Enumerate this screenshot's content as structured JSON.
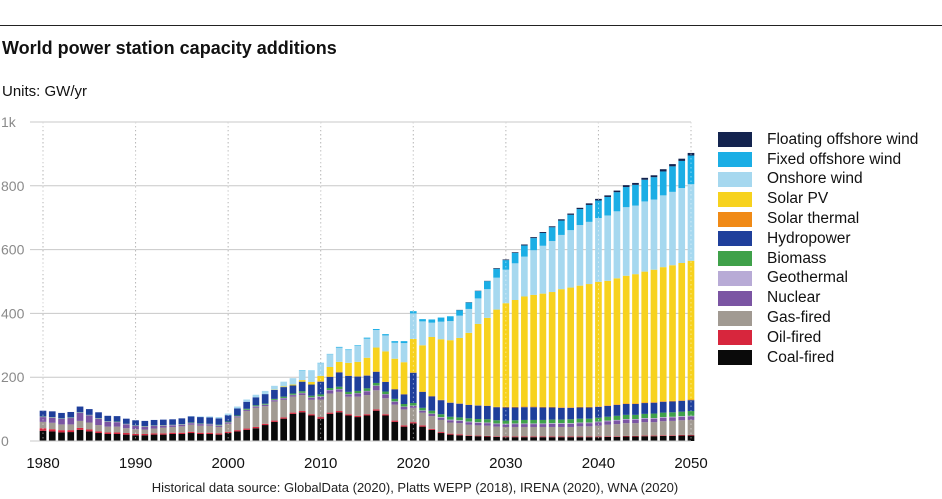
{
  "title": "World power station capacity additions",
  "units": "Units: GW/yr",
  "source": "Historical data source: GlobalData (2020), Platts WEPP (2018), IRENA (2020), WNA (2020)",
  "chart_data": {
    "type": "bar",
    "stacked": true,
    "title": "World power station capacity additions",
    "ylabel": "Units: GW/yr",
    "xlabel": "",
    "xlim": [
      1980,
      2050
    ],
    "ylim": [
      0,
      1000
    ],
    "x_ticks": [
      "1980",
      "1990",
      "2000",
      "2010",
      "2020",
      "2030",
      "2040",
      "2050"
    ],
    "y_ticks": [
      {
        "value": 0,
        "label": "0"
      },
      {
        "value": 200,
        "label": "200"
      },
      {
        "value": 400,
        "label": "400"
      },
      {
        "value": 600,
        "label": "600"
      },
      {
        "value": 800,
        "label": "800"
      },
      {
        "value": 1000,
        "label": "1k"
      }
    ],
    "grid": true,
    "legend_position": "right",
    "years": [
      1980,
      1981,
      1982,
      1983,
      1984,
      1985,
      1986,
      1987,
      1988,
      1989,
      1990,
      1991,
      1992,
      1993,
      1994,
      1995,
      1996,
      1997,
      1998,
      1999,
      2000,
      2001,
      2002,
      2003,
      2004,
      2005,
      2006,
      2007,
      2008,
      2009,
      2010,
      2011,
      2012,
      2013,
      2014,
      2015,
      2016,
      2017,
      2018,
      2019,
      2020,
      2021,
      2022,
      2023,
      2024,
      2025,
      2026,
      2027,
      2028,
      2029,
      2030,
      2031,
      2032,
      2033,
      2034,
      2035,
      2036,
      2037,
      2038,
      2039,
      2040,
      2041,
      2042,
      2043,
      2044,
      2045,
      2046,
      2047,
      2048,
      2049,
      2050
    ],
    "series": [
      {
        "name": "Coal-fired",
        "color": "#0a0a0a",
        "values": [
          32,
          30,
          27,
          28,
          35,
          30,
          25,
          22,
          22,
          20,
          18,
          18,
          20,
          20,
          22,
          22,
          25,
          22,
          22,
          20,
          25,
          30,
          35,
          40,
          50,
          60,
          70,
          85,
          90,
          80,
          70,
          85,
          90,
          80,
          75,
          80,
          95,
          80,
          60,
          45,
          55,
          45,
          35,
          25,
          20,
          18,
          16,
          15,
          14,
          13,
          12,
          12,
          12,
          12,
          12,
          12,
          12,
          12,
          12,
          12,
          12,
          13,
          13,
          14,
          14,
          15,
          15,
          16,
          16,
          17,
          17
        ]
      },
      {
        "name": "Oil-fired",
        "color": "#d7263d",
        "values": [
          8,
          7,
          7,
          6,
          6,
          6,
          5,
          5,
          5,
          5,
          4,
          4,
          4,
          4,
          4,
          4,
          4,
          4,
          4,
          4,
          4,
          4,
          4,
          4,
          4,
          4,
          4,
          4,
          4,
          4,
          5,
          4,
          4,
          4,
          4,
          4,
          4,
          4,
          4,
          4,
          4,
          4,
          3,
          3,
          3,
          3,
          2,
          2,
          2,
          2,
          2,
          2,
          2,
          2,
          2,
          2,
          2,
          2,
          2,
          2,
          2,
          2,
          2,
          2,
          2,
          2,
          2,
          2,
          2,
          2,
          2
        ]
      },
      {
        "name": "Gas-fired",
        "color": "#a19a92",
        "values": [
          20,
          20,
          18,
          18,
          22,
          22,
          20,
          18,
          18,
          15,
          15,
          14,
          15,
          18,
          18,
          20,
          22,
          22,
          22,
          20,
          25,
          40,
          55,
          60,
          55,
          60,
          55,
          50,
          50,
          45,
          55,
          60,
          60,
          55,
          60,
          60,
          60,
          50,
          50,
          50,
          45,
          40,
          40,
          38,
          35,
          35,
          33,
          32,
          32,
          30,
          30,
          30,
          30,
          30,
          30,
          30,
          30,
          30,
          32,
          32,
          34,
          36,
          38,
          40,
          40,
          42,
          42,
          44,
          45,
          46,
          47
        ]
      },
      {
        "name": "Nuclear",
        "color": "#7b55a3",
        "values": [
          15,
          16,
          17,
          20,
          25,
          22,
          20,
          15,
          14,
          12,
          10,
          9,
          8,
          6,
          5,
          5,
          5,
          5,
          4,
          4,
          4,
          3,
          3,
          4,
          4,
          4,
          5,
          5,
          6,
          7,
          9,
          10,
          8,
          7,
          10,
          12,
          14,
          12,
          9,
          8,
          6,
          6,
          7,
          7,
          7,
          7,
          8,
          8,
          8,
          8,
          8,
          9,
          9,
          9,
          9,
          10,
          10,
          10,
          10,
          10,
          11,
          11,
          11,
          11,
          11,
          11,
          11,
          11,
          11,
          11,
          11
        ]
      },
      {
        "name": "Geothermal",
        "color": "#b8abd6",
        "values": [
          1,
          1,
          1,
          1,
          1,
          1,
          1,
          1,
          1,
          1,
          1,
          1,
          1,
          1,
          1,
          1,
          1,
          1,
          1,
          1,
          1,
          1,
          1,
          1,
          1,
          1,
          1,
          1,
          1,
          1,
          1,
          1,
          1,
          1,
          1,
          1,
          1,
          1,
          1,
          1,
          1,
          1,
          1,
          2,
          2,
          2,
          2,
          2,
          2,
          2,
          2,
          2,
          2,
          2,
          2,
          2,
          2,
          2,
          2,
          2,
          2,
          2,
          2,
          2,
          2,
          2,
          2,
          2,
          2,
          2,
          2
        ]
      },
      {
        "name": "Biomass",
        "color": "#3fa14a",
        "values": [
          1,
          1,
          1,
          1,
          1,
          1,
          1,
          1,
          1,
          1,
          1,
          1,
          1,
          1,
          1,
          1,
          1,
          1,
          1,
          2,
          2,
          2,
          3,
          3,
          3,
          3,
          4,
          4,
          5,
          5,
          6,
          6,
          7,
          7,
          7,
          8,
          8,
          8,
          8,
          8,
          8,
          8,
          9,
          9,
          9,
          9,
          10,
          10,
          10,
          10,
          10,
          10,
          11,
          11,
          11,
          11,
          11,
          12,
          12,
          12,
          12,
          12,
          13,
          13,
          13,
          13,
          14,
          14,
          14,
          14,
          15
        ]
      },
      {
        "name": "Hydropower",
        "color": "#1f3f9b",
        "values": [
          18,
          18,
          17,
          17,
          18,
          18,
          18,
          17,
          17,
          16,
          16,
          16,
          17,
          17,
          17,
          18,
          19,
          20,
          20,
          20,
          20,
          22,
          22,
          25,
          30,
          28,
          30,
          25,
          30,
          35,
          40,
          35,
          45,
          50,
          45,
          40,
          35,
          30,
          30,
          30,
          95,
          50,
          45,
          44,
          44,
          43,
          42,
          42,
          42,
          41,
          41,
          40,
          40,
          40,
          39,
          38,
          37,
          36,
          35,
          35,
          34,
          34,
          34,
          34,
          34,
          34,
          34,
          34,
          34,
          34,
          34
        ]
      },
      {
        "name": "Solar thermal",
        "color": "#f08a16",
        "values": [
          0,
          0,
          0,
          0,
          0,
          0,
          0,
          0,
          0,
          0,
          0,
          0,
          0,
          0,
          0,
          0,
          0,
          0,
          0,
          0,
          0,
          0,
          0,
          0,
          0,
          0,
          0,
          0,
          0,
          0,
          1,
          1,
          1,
          1,
          1,
          1,
          1,
          1,
          1,
          1,
          1,
          1,
          1,
          1,
          1,
          1,
          1,
          1,
          1,
          1,
          2,
          2,
          2,
          2,
          2,
          2,
          2,
          2,
          2,
          2,
          2,
          2,
          2,
          2,
          2,
          2,
          2,
          2,
          2,
          2,
          2
        ]
      },
      {
        "name": "Solar PV",
        "color": "#f7d21e",
        "values": [
          0,
          0,
          0,
          0,
          0,
          0,
          0,
          0,
          0,
          0,
          0,
          0,
          0,
          0,
          0,
          0,
          0,
          0,
          0,
          0,
          0,
          0,
          0,
          0,
          0,
          1,
          2,
          3,
          5,
          8,
          17,
          30,
          32,
          40,
          45,
          55,
          75,
          95,
          95,
          100,
          105,
          145,
          185,
          190,
          195,
          205,
          225,
          255,
          275,
          305,
          325,
          335,
          345,
          350,
          355,
          360,
          370,
          375,
          380,
          385,
          390,
          390,
          395,
          400,
          405,
          410,
          415,
          420,
          425,
          430,
          435
        ]
      },
      {
        "name": "Onshore wind",
        "color": "#a6d8ef",
        "values": [
          0,
          0,
          0,
          0,
          0,
          0,
          0,
          0,
          0,
          0,
          0,
          0,
          0,
          0,
          0,
          0,
          1,
          2,
          3,
          4,
          5,
          6,
          7,
          8,
          10,
          12,
          15,
          20,
          30,
          35,
          40,
          40,
          45,
          40,
          50,
          60,
          55,
          50,
          50,
          60,
          80,
          75,
          45,
          55,
          60,
          70,
          75,
          80,
          90,
          100,
          105,
          115,
          125,
          140,
          150,
          160,
          170,
          180,
          190,
          195,
          200,
          205,
          210,
          215,
          215,
          220,
          220,
          225,
          230,
          235,
          240
        ]
      },
      {
        "name": "Fixed offshore wind",
        "color": "#1baee5",
        "values": [
          0,
          0,
          0,
          0,
          0,
          0,
          0,
          0,
          0,
          0,
          0,
          0,
          0,
          0,
          0,
          0,
          0,
          0,
          0,
          0,
          0,
          0,
          0,
          0,
          0,
          0,
          0,
          0,
          1,
          1,
          1,
          1,
          2,
          2,
          2,
          3,
          3,
          4,
          5,
          6,
          7,
          7,
          10,
          13,
          15,
          17,
          20,
          23,
          25,
          28,
          30,
          33,
          35,
          38,
          40,
          43,
          45,
          48,
          50,
          53,
          55,
          58,
          60,
          63,
          65,
          68,
          70,
          75,
          80,
          85,
          90
        ]
      },
      {
        "name": "Floating offshore wind",
        "color": "#14244f",
        "values": [
          0,
          0,
          0,
          0,
          0,
          0,
          0,
          0,
          0,
          0,
          0,
          0,
          0,
          0,
          0,
          0,
          0,
          0,
          0,
          0,
          0,
          0,
          0,
          0,
          0,
          0,
          0,
          0,
          0,
          0,
          0,
          0,
          0,
          0,
          0,
          0,
          0,
          0,
          0,
          0,
          0,
          0,
          0,
          0,
          0,
          1,
          1,
          1,
          1,
          2,
          2,
          2,
          3,
          3,
          3,
          3,
          4,
          4,
          4,
          5,
          5,
          5,
          5,
          6,
          6,
          6,
          6,
          7,
          7,
          7,
          8
        ]
      }
    ]
  }
}
